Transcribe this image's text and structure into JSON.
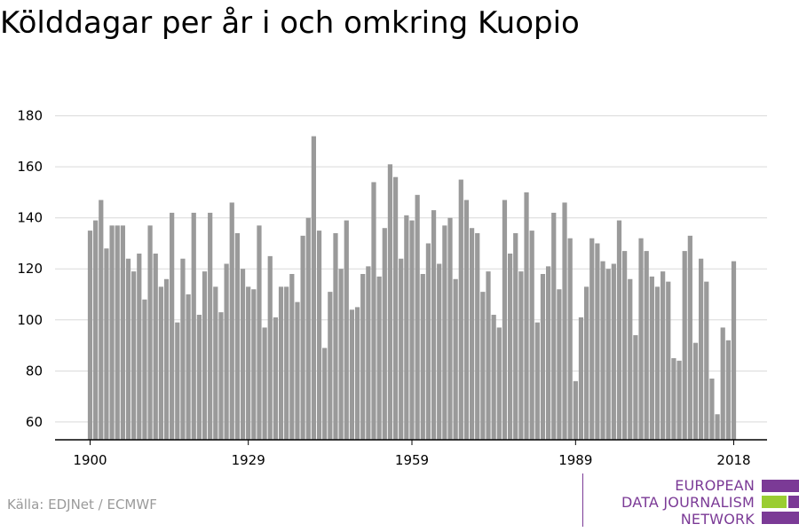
{
  "title": "Kölddagar per år i och omkring Kuopio",
  "source": "Källa: EDJNet / ECMWF",
  "logo": {
    "line1": "EUROPEAN",
    "line2": "DATA JOURNALISM",
    "line3": "NETWORK",
    "colors": {
      "purple": "#7b3a96",
      "green": "#9acd32"
    }
  },
  "colors": {
    "bar": "#9a9a9a",
    "grid": "#d9d9d9",
    "axis": "#000000"
  },
  "chart_data": {
    "type": "bar",
    "title": "Kölddagar per år i och omkring Kuopio",
    "xlabel": "",
    "ylabel": "",
    "ylim": [
      53,
      183
    ],
    "yticks": [
      60,
      80,
      100,
      120,
      140,
      160,
      180
    ],
    "xticks": [
      1900,
      1929,
      1959,
      1989,
      2018
    ],
    "grid": true,
    "legend": "none",
    "x": [
      1900,
      1901,
      1902,
      1903,
      1904,
      1905,
      1906,
      1907,
      1908,
      1909,
      1910,
      1911,
      1912,
      1913,
      1914,
      1915,
      1916,
      1917,
      1918,
      1919,
      1920,
      1921,
      1922,
      1923,
      1924,
      1925,
      1926,
      1927,
      1928,
      1929,
      1930,
      1931,
      1932,
      1933,
      1934,
      1935,
      1936,
      1937,
      1938,
      1939,
      1940,
      1941,
      1942,
      1943,
      1944,
      1945,
      1946,
      1947,
      1948,
      1949,
      1950,
      1951,
      1952,
      1953,
      1954,
      1955,
      1956,
      1957,
      1958,
      1959,
      1960,
      1961,
      1962,
      1963,
      1964,
      1965,
      1966,
      1967,
      1968,
      1969,
      1970,
      1971,
      1972,
      1973,
      1974,
      1975,
      1976,
      1977,
      1978,
      1979,
      1980,
      1981,
      1982,
      1983,
      1984,
      1985,
      1986,
      1987,
      1988,
      1989,
      1990,
      1991,
      1992,
      1993,
      1994,
      1995,
      1996,
      1997,
      1998,
      1999,
      2000,
      2001,
      2002,
      2003,
      2004,
      2005,
      2006,
      2007,
      2008,
      2009,
      2010,
      2011,
      2012,
      2013,
      2014,
      2015,
      2016,
      2017,
      2018
    ],
    "values": [
      135,
      139,
      147,
      128,
      137,
      137,
      137,
      124,
      119,
      126,
      108,
      137,
      126,
      113,
      116,
      142,
      99,
      124,
      110,
      142,
      102,
      119,
      142,
      113,
      103,
      122,
      146,
      134,
      120,
      113,
      112,
      137,
      97,
      125,
      101,
      113,
      113,
      118,
      107,
      133,
      140,
      172,
      135,
      89,
      111,
      134,
      120,
      139,
      104,
      105,
      118,
      121,
      154,
      117,
      136,
      161,
      156,
      124,
      141,
      139,
      149,
      118,
      130,
      143,
      122,
      137,
      140,
      116,
      155,
      147,
      136,
      134,
      111,
      119,
      102,
      97,
      147,
      126,
      134,
      119,
      150,
      135,
      99,
      118,
      121,
      142,
      112,
      146,
      132,
      76,
      101,
      113,
      132,
      130,
      123,
      120,
      122,
      139,
      127,
      116,
      94,
      132,
      127,
      117,
      113,
      119,
      115,
      85,
      84,
      127,
      133,
      91,
      124,
      115,
      77,
      63,
      97,
      92,
      123
    ]
  }
}
